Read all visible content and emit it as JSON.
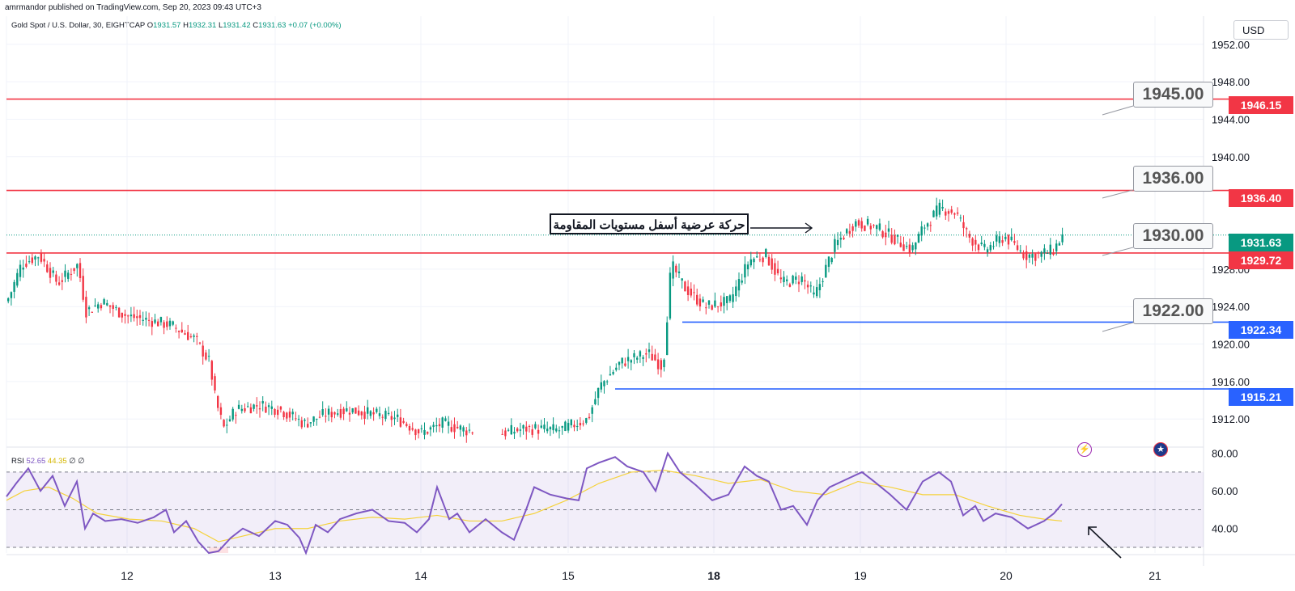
{
  "header": {
    "published": "amrmandor published on TradingView.com, Sep 20, 2023 09:43 UTC+3",
    "symbol": "Gold Spot / U.S. Dollar, 30, EIGHTCAP",
    "o_label": "O",
    "o_val": "1931.57",
    "h_label": "H",
    "h_val": "1932.31",
    "l_label": "L",
    "l_val": "1931.42",
    "c_label": "C",
    "c_val": "1931.63",
    "change": "+0.07 (+0.00%)"
  },
  "currency": "USD",
  "rsi_legend": {
    "label": "RSI",
    "v1": "52.65",
    "v2": "44.35",
    "extra": "∅ ∅"
  },
  "price_tags": [
    {
      "text": "1946.15",
      "color": "#f23645"
    },
    {
      "text": "1936.40",
      "color": "#f23645"
    },
    {
      "text": "1931.63",
      "color": "#089981"
    },
    {
      "text": "1929.72",
      "color": "#f23645"
    },
    {
      "text": "1922.34",
      "color": "#2962ff"
    },
    {
      "text": "1915.21",
      "color": "#2962ff"
    }
  ],
  "notes": [
    "1945.00",
    "1936.00",
    "1930.00",
    "1922.00"
  ],
  "annotation": "حركة عرضية أسفل مستويات المقاومة",
  "icons": [
    "lightning-icon",
    "us-flag-icon"
  ],
  "chart_data": [
    {
      "type": "candlestick",
      "name": "Gold Spot / U.S. Dollar",
      "ylim": [
        1909,
        1955
      ],
      "yticks": [
        1952,
        1948,
        1944,
        1940,
        1928,
        1924,
        1920,
        1916,
        1912
      ],
      "ytick_labels": [
        "1952.00",
        "1948.00",
        "1944.00",
        "1940.00",
        "1928.00",
        "1924.00",
        "1920.00",
        "1916.00",
        "1912.00"
      ],
      "x_labels": [
        "12",
        "13",
        "14",
        "15",
        "18",
        "19",
        "20",
        "21"
      ],
      "path_points": [
        [
          0,
          1924.0
        ],
        [
          10,
          1925.0
        ],
        [
          25,
          1928.5
        ],
        [
          47,
          1929.5
        ],
        [
          70,
          1926.5
        ],
        [
          95,
          1928.5
        ],
        [
          105,
          1923.5
        ],
        [
          125,
          1924.5
        ],
        [
          155,
          1923.0
        ],
        [
          185,
          1922.5
        ],
        [
          210,
          1922.0
        ],
        [
          240,
          1920.5
        ],
        [
          258,
          1918.0
        ],
        [
          265,
          1914.0
        ],
        [
          275,
          1911.0
        ],
        [
          290,
          1913.0
        ],
        [
          320,
          1913.5
        ],
        [
          345,
          1913.0
        ],
        [
          375,
          1911.5
        ],
        [
          400,
          1912.5
        ],
        [
          430,
          1913.0
        ],
        [
          460,
          1912.5
        ],
        [
          490,
          1912.0
        ],
        [
          520,
          1910.5
        ],
        [
          545,
          1911.5
        ],
        [
          575,
          1910.8
        ],
        [
          620,
          1910.5
        ],
        [
          650,
          1911.0
        ],
        [
          690,
          1910.8
        ],
        [
          725,
          1912.0
        ],
        [
          740,
          1915.5
        ],
        [
          765,
          1918.0
        ],
        [
          800,
          1919.0
        ],
        [
          818,
          1917.5
        ],
        [
          828,
          1928.5
        ],
        [
          845,
          1926.0
        ],
        [
          870,
          1924.0
        ],
        [
          900,
          1924.5
        ],
        [
          925,
          1929.0
        ],
        [
          945,
          1929.5
        ],
        [
          965,
          1926.5
        ],
        [
          990,
          1927.0
        ],
        [
          1005,
          1925.0
        ],
        [
          1030,
          1930.5
        ],
        [
          1055,
          1933.0
        ],
        [
          1080,
          1932.5
        ],
        [
          1100,
          1931.5
        ],
        [
          1125,
          1930.0
        ],
        [
          1140,
          1932.5
        ],
        [
          1160,
          1934.5
        ],
        [
          1180,
          1934.0
        ],
        [
          1195,
          1931.5
        ],
        [
          1215,
          1930.0
        ],
        [
          1240,
          1931.5
        ],
        [
          1265,
          1929.5
        ],
        [
          1280,
          1929.5
        ],
        [
          1300,
          1930.0
        ],
        [
          1312,
          1931.6
        ]
      ],
      "horizontal_levels": [
        {
          "value": 1946.15,
          "color": "#f23645",
          "from": "left"
        },
        {
          "value": 1936.4,
          "color": "#f23645",
          "from": "left"
        },
        {
          "value": 1929.72,
          "color": "#f23645",
          "from": "left"
        },
        {
          "value": 1922.34,
          "color": "#2962ff",
          "from": "Sep 18"
        },
        {
          "value": 1915.21,
          "color": "#2962ff",
          "from": "Sep 15"
        },
        {
          "value": 1931.63,
          "color": "#089981",
          "style": "dotted",
          "from": "left"
        }
      ]
    },
    {
      "type": "line",
      "name": "RSI",
      "ylim": [
        27,
        82
      ],
      "yticks": [
        80,
        60,
        40
      ],
      "ytick_labels": [
        "80.00",
        "60.00",
        "40.00"
      ],
      "band": [
        30,
        70
      ],
      "midline": 50,
      "points": [
        [
          8,
          57
        ],
        [
          20,
          64
        ],
        [
          35,
          72
        ],
        [
          50,
          60
        ],
        [
          65,
          68
        ],
        [
          80,
          52
        ],
        [
          95,
          65
        ],
        [
          105,
          40
        ],
        [
          115,
          48
        ],
        [
          130,
          44
        ],
        [
          150,
          45
        ],
        [
          170,
          43
        ],
        [
          190,
          46
        ],
        [
          205,
          50
        ],
        [
          215,
          38
        ],
        [
          230,
          44
        ],
        [
          245,
          33
        ],
        [
          258,
          27
        ],
        [
          270,
          28
        ],
        [
          285,
          35
        ],
        [
          300,
          40
        ],
        [
          320,
          36
        ],
        [
          340,
          44
        ],
        [
          355,
          42
        ],
        [
          370,
          35
        ],
        [
          378,
          27
        ],
        [
          390,
          42
        ],
        [
          405,
          38
        ],
        [
          420,
          45
        ],
        [
          440,
          48
        ],
        [
          460,
          50
        ],
        [
          480,
          44
        ],
        [
          500,
          43
        ],
        [
          515,
          38
        ],
        [
          530,
          45
        ],
        [
          540,
          62
        ],
        [
          555,
          45
        ],
        [
          565,
          48
        ],
        [
          580,
          38
        ],
        [
          600,
          45
        ],
        [
          620,
          38
        ],
        [
          635,
          34
        ],
        [
          650,
          50
        ],
        [
          660,
          62
        ],
        [
          680,
          58
        ],
        [
          700,
          56
        ],
        [
          715,
          55
        ],
        [
          725,
          72
        ],
        [
          740,
          75
        ],
        [
          760,
          78
        ],
        [
          775,
          73
        ],
        [
          795,
          70
        ],
        [
          810,
          60
        ],
        [
          825,
          80
        ],
        [
          840,
          70
        ],
        [
          860,
          63
        ],
        [
          880,
          55
        ],
        [
          900,
          58
        ],
        [
          920,
          73
        ],
        [
          935,
          68
        ],
        [
          950,
          65
        ],
        [
          965,
          50
        ],
        [
          980,
          52
        ],
        [
          997,
          42
        ],
        [
          1010,
          55
        ],
        [
          1025,
          62
        ],
        [
          1045,
          66
        ],
        [
          1065,
          70
        ],
        [
          1080,
          65
        ],
        [
          1100,
          58
        ],
        [
          1120,
          50
        ],
        [
          1140,
          65
        ],
        [
          1160,
          70
        ],
        [
          1175,
          65
        ],
        [
          1190,
          47
        ],
        [
          1205,
          52
        ],
        [
          1215,
          44
        ],
        [
          1230,
          48
        ],
        [
          1250,
          46
        ],
        [
          1270,
          40
        ],
        [
          1290,
          44
        ],
        [
          1302,
          48
        ],
        [
          1312,
          53
        ]
      ],
      "ma_points": [
        [
          8,
          55
        ],
        [
          30,
          60
        ],
        [
          60,
          62
        ],
        [
          90,
          56
        ],
        [
          120,
          48
        ],
        [
          160,
          45
        ],
        [
          200,
          44
        ],
        [
          240,
          40
        ],
        [
          270,
          33
        ],
        [
          300,
          36
        ],
        [
          340,
          40
        ],
        [
          380,
          40
        ],
        [
          420,
          44
        ],
        [
          460,
          46
        ],
        [
          500,
          45
        ],
        [
          540,
          47
        ],
        [
          580,
          44
        ],
        [
          620,
          44
        ],
        [
          660,
          48
        ],
        [
          700,
          55
        ],
        [
          740,
          64
        ],
        [
          780,
          70
        ],
        [
          820,
          71
        ],
        [
          860,
          68
        ],
        [
          900,
          64
        ],
        [
          940,
          66
        ],
        [
          980,
          60
        ],
        [
          1020,
          58
        ],
        [
          1060,
          65
        ],
        [
          1100,
          62
        ],
        [
          1140,
          58
        ],
        [
          1180,
          58
        ],
        [
          1220,
          52
        ],
        [
          1260,
          47
        ],
        [
          1290,
          45
        ],
        [
          1312,
          44
        ]
      ]
    }
  ]
}
